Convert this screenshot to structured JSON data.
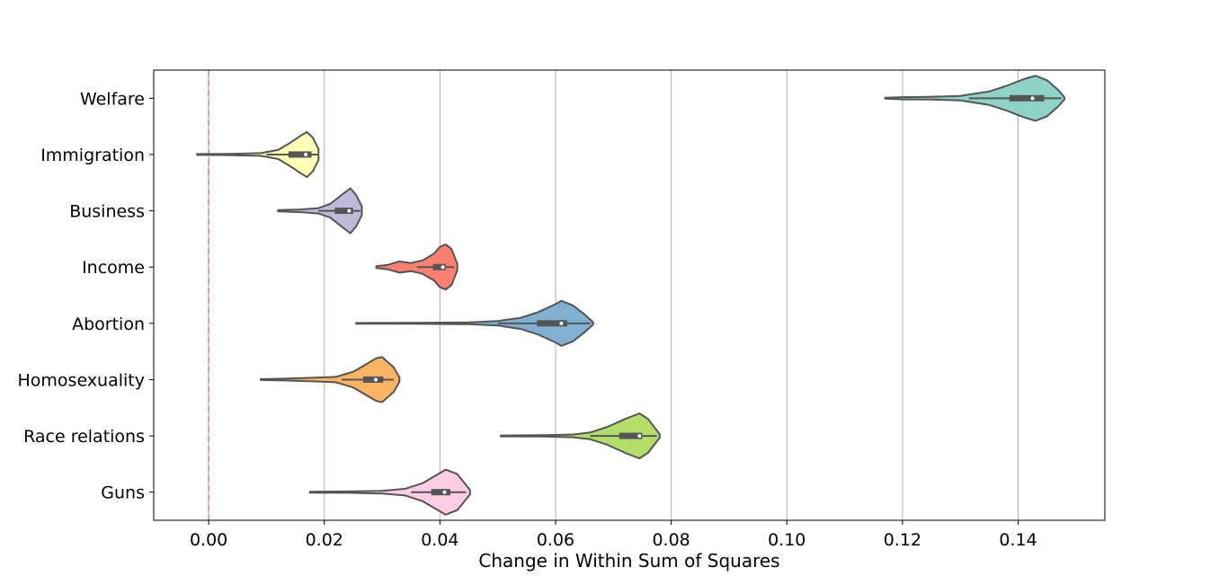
{
  "chart_data": {
    "type": "violin",
    "title": "",
    "xlabel": "Change in Within Sum of Squares",
    "ylabel": "",
    "xlim": [
      -0.0095,
      0.155
    ],
    "xticks": [
      0.0,
      0.02,
      0.04,
      0.06,
      0.08,
      0.1,
      0.12,
      0.14
    ],
    "xtick_labels": [
      "0.00",
      "0.02",
      "0.04",
      "0.06",
      "0.08",
      "0.10",
      "0.12",
      "0.14"
    ],
    "grid": "vertical",
    "reference_line": {
      "x": 0.0,
      "style": "dashed",
      "color": "#e07b7b"
    },
    "categories": [
      "Welfare",
      "Immigration",
      "Business",
      "Income",
      "Abortion",
      "Homosexuality",
      "Race relations",
      "Guns"
    ],
    "series": [
      {
        "name": "Welfare",
        "color": "#8dd3c7",
        "min": 0.117,
        "max": 0.148,
        "q1": 0.1385,
        "median": 0.1425,
        "q3": 0.1445,
        "whisker_low": 0.1315,
        "whisker_high": 0.1475,
        "density": [
          [
            0.117,
            0.02
          ],
          [
            0.12,
            0.05
          ],
          [
            0.125,
            0.06
          ],
          [
            0.13,
            0.1
          ],
          [
            0.135,
            0.3
          ],
          [
            0.138,
            0.55
          ],
          [
            0.141,
            0.85
          ],
          [
            0.143,
            1.0
          ],
          [
            0.145,
            0.8
          ],
          [
            0.147,
            0.35
          ],
          [
            0.148,
            0.05
          ]
        ]
      },
      {
        "name": "Immigration",
        "color": "#ffffb3",
        "min": -0.002,
        "max": 0.019,
        "q1": 0.0138,
        "median": 0.0168,
        "q3": 0.0178,
        "whisker_low": 0.01,
        "whisker_high": 0.019,
        "density": [
          [
            -0.002,
            0.02
          ],
          [
            0.004,
            0.03
          ],
          [
            0.009,
            0.06
          ],
          [
            0.012,
            0.2
          ],
          [
            0.014,
            0.5
          ],
          [
            0.016,
            0.85
          ],
          [
            0.017,
            1.0
          ],
          [
            0.018,
            0.75
          ],
          [
            0.019,
            0.25
          ]
        ]
      },
      {
        "name": "Business",
        "color": "#bebada",
        "min": 0.012,
        "max": 0.0265,
        "q1": 0.0218,
        "median": 0.0243,
        "q3": 0.025,
        "whisker_low": 0.019,
        "whisker_high": 0.0262,
        "density": [
          [
            0.012,
            0.03
          ],
          [
            0.016,
            0.06
          ],
          [
            0.019,
            0.12
          ],
          [
            0.021,
            0.3
          ],
          [
            0.023,
            0.7
          ],
          [
            0.0245,
            1.0
          ],
          [
            0.0255,
            0.7
          ],
          [
            0.0265,
            0.2
          ]
        ]
      },
      {
        "name": "Income",
        "color": "#fb8072",
        "min": 0.029,
        "max": 0.043,
        "q1": 0.0388,
        "median": 0.0405,
        "q3": 0.041,
        "whisker_low": 0.036,
        "whisker_high": 0.0425,
        "density": [
          [
            0.029,
            0.04
          ],
          [
            0.031,
            0.1
          ],
          [
            0.033,
            0.25
          ],
          [
            0.035,
            0.18
          ],
          [
            0.037,
            0.3
          ],
          [
            0.039,
            0.6
          ],
          [
            0.04,
            0.9
          ],
          [
            0.041,
            1.0
          ],
          [
            0.042,
            0.8
          ],
          [
            0.043,
            0.15
          ]
        ]
      },
      {
        "name": "Abortion",
        "color": "#80b1d3",
        "min": 0.0255,
        "max": 0.0665,
        "q1": 0.0568,
        "median": 0.061,
        "q3": 0.062,
        "whisker_low": 0.05,
        "whisker_high": 0.066,
        "density": [
          [
            0.0255,
            0.015
          ],
          [
            0.035,
            0.02
          ],
          [
            0.045,
            0.04
          ],
          [
            0.05,
            0.1
          ],
          [
            0.054,
            0.25
          ],
          [
            0.057,
            0.5
          ],
          [
            0.06,
            0.85
          ],
          [
            0.061,
            1.0
          ],
          [
            0.063,
            0.8
          ],
          [
            0.065,
            0.4
          ],
          [
            0.0665,
            0.05
          ]
        ]
      },
      {
        "name": "Homosexuality",
        "color": "#fdb462",
        "min": 0.009,
        "max": 0.033,
        "q1": 0.0267,
        "median": 0.0289,
        "q3": 0.0302,
        "whisker_low": 0.023,
        "whisker_high": 0.032,
        "density": [
          [
            0.009,
            0.02
          ],
          [
            0.013,
            0.04
          ],
          [
            0.018,
            0.08
          ],
          [
            0.022,
            0.12
          ],
          [
            0.025,
            0.35
          ],
          [
            0.027,
            0.65
          ],
          [
            0.029,
            0.95
          ],
          [
            0.03,
            1.0
          ],
          [
            0.032,
            0.55
          ],
          [
            0.033,
            0.1
          ]
        ]
      },
      {
        "name": "Race relations",
        "color": "#b3de69",
        "min": 0.0505,
        "max": 0.078,
        "q1": 0.071,
        "median": 0.0745,
        "q3": 0.075,
        "whisker_low": 0.066,
        "whisker_high": 0.0775,
        "density": [
          [
            0.0505,
            0.02
          ],
          [
            0.058,
            0.03
          ],
          [
            0.063,
            0.06
          ],
          [
            0.066,
            0.15
          ],
          [
            0.069,
            0.4
          ],
          [
            0.072,
            0.75
          ],
          [
            0.0745,
            1.0
          ],
          [
            0.076,
            0.75
          ],
          [
            0.078,
            0.08
          ]
        ]
      },
      {
        "name": "Guns",
        "color": "#fccde5",
        "min": 0.0175,
        "max": 0.0452,
        "q1": 0.0385,
        "median": 0.0408,
        "q3": 0.0418,
        "whisker_low": 0.035,
        "whisker_high": 0.0445,
        "density": [
          [
            0.0175,
            0.02
          ],
          [
            0.024,
            0.03
          ],
          [
            0.03,
            0.06
          ],
          [
            0.034,
            0.15
          ],
          [
            0.037,
            0.4
          ],
          [
            0.039,
            0.7
          ],
          [
            0.041,
            1.0
          ],
          [
            0.043,
            0.8
          ],
          [
            0.0452,
            0.1
          ]
        ]
      }
    ]
  }
}
